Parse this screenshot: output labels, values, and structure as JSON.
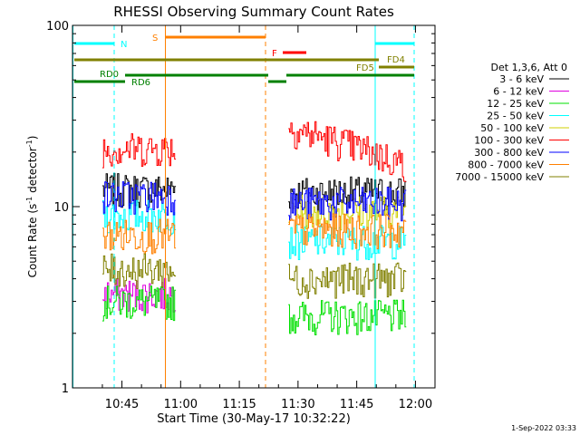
{
  "chart_data": {
    "type": "line",
    "title": "RHESSI Observing Summary Count Rates",
    "xlabel": "Start Time (30-May-17 10:32:22)",
    "ylabel": "Count Rate (s⁻¹ detector⁻¹)",
    "ylabel_main": "Count Rate (s",
    "ylabel_sup1": "-1",
    "ylabel_mid": " detector",
    "ylabel_sup2": "-1",
    "ylabel_end": ")",
    "yscale": "log",
    "ylim": [
      1,
      100
    ],
    "xlim_minutes": [
      32.37,
      125
    ],
    "x_ticks": [
      {
        "minute": 45,
        "label": "10:45"
      },
      {
        "minute": 60,
        "label": "11:00"
      },
      {
        "minute": 75,
        "label": "11:15"
      },
      {
        "minute": 90,
        "label": "11:30"
      },
      {
        "minute": 105,
        "label": "11:45"
      },
      {
        "minute": 120,
        "label": "12:00"
      }
    ],
    "y_ticks": [
      {
        "value": 1,
        "label": "1"
      },
      {
        "value": 10,
        "label": "10"
      },
      {
        "value": 100,
        "label": "100"
      }
    ],
    "legend_title": "Det 1,3,6, Att 0",
    "legend_placement": "right",
    "series": [
      {
        "name": "3 - 6 keV",
        "color": "#000000",
        "segments": [
          {
            "start": 40,
            "end": 58.5,
            "level": 12.5
          },
          {
            "start": 87.5,
            "end": 117.5,
            "level": 12.0
          }
        ]
      },
      {
        "name": "6 - 12 keV",
        "color": "#e000e0",
        "segments": [
          {
            "start": 40,
            "end": 58.5,
            "level": 3.3
          }
        ]
      },
      {
        "name": "12 - 25 keV",
        "color": "#00e000",
        "segments": [
          {
            "start": 40,
            "end": 58.5,
            "level": 3.0
          },
          {
            "start": 87.5,
            "end": 117.5,
            "level": 2.5
          }
        ]
      },
      {
        "name": "25 - 50 keV",
        "color": "#00ffff",
        "segments": [
          {
            "start": 40,
            "end": 58.5,
            "level": 9.0
          },
          {
            "start": 87.5,
            "end": 117.5,
            "level": 6.5
          }
        ]
      },
      {
        "name": "50 - 100 keV",
        "color": "#d0d000",
        "segments": [
          {
            "start": 87.5,
            "end": 117.5,
            "level": 9.5
          }
        ]
      },
      {
        "name": "100 - 300 keV",
        "color": "#ff0000",
        "segments": [
          {
            "start": 40,
            "end": 58.5,
            "level": 21.0
          },
          {
            "start": 87.5,
            "end": 117.5,
            "level": 17.0
          }
        ]
      },
      {
        "name": "300 - 800 keV",
        "color": "#0000ff",
        "segments": [
          {
            "start": 40,
            "end": 58.5,
            "level": 11.5
          },
          {
            "start": 87.5,
            "end": 117.5,
            "level": 10.5
          }
        ]
      },
      {
        "name": "800 - 7000 keV",
        "color": "#ff8000",
        "segments": [
          {
            "start": 40,
            "end": 58.5,
            "level": 7.0
          },
          {
            "start": 87.5,
            "end": 117.5,
            "level": 7.5
          }
        ]
      },
      {
        "name": "7000 - 15000 keV",
        "color": "#808000",
        "segments": [
          {
            "start": 40,
            "end": 58.5,
            "level": 4.5
          },
          {
            "start": 87.5,
            "end": 117.5,
            "level": 4.0
          }
        ]
      }
    ],
    "annotations": [
      {
        "label": "N",
        "color": "#00ffff"
      },
      {
        "label": "S",
        "color": "#ff8000"
      },
      {
        "label": "F",
        "color": "#ff0000"
      },
      {
        "label": "FD4",
        "color": "#808000"
      },
      {
        "label": "FD5",
        "color": "#808000"
      },
      {
        "label": "RD0",
        "color": "#008000"
      },
      {
        "label": "RD6",
        "color": "#008000"
      }
    ],
    "footer_timestamp": "1-Sep-2022 03:33"
  }
}
